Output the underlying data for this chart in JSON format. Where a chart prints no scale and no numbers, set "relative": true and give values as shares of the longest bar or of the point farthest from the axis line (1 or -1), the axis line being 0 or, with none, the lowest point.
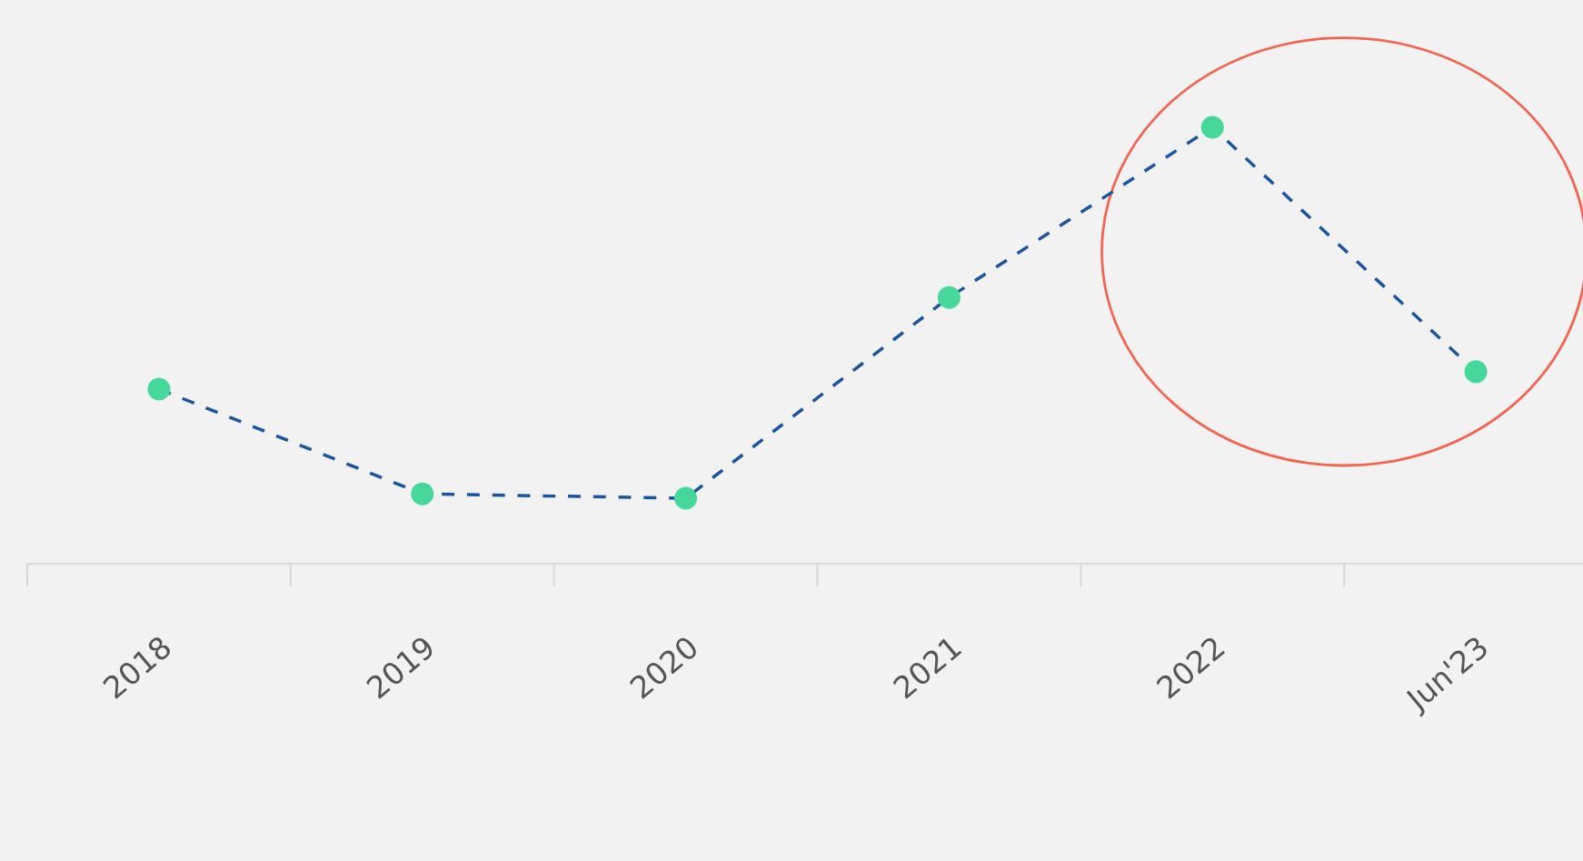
{
  "chart_data": {
    "type": "line",
    "categories": [
      "2018",
      "2019",
      "2020",
      "2021",
      "2022",
      "Jun'23"
    ],
    "relative": true,
    "series": [
      {
        "color": "#1a56a0",
        "values": [
          0.4,
          0.16,
          0.15,
          0.61,
          1,
          0.44
        ]
      }
    ],
    "marker": "circle",
    "line_style": "dashed",
    "grid": false,
    "legend": false
  }
}
